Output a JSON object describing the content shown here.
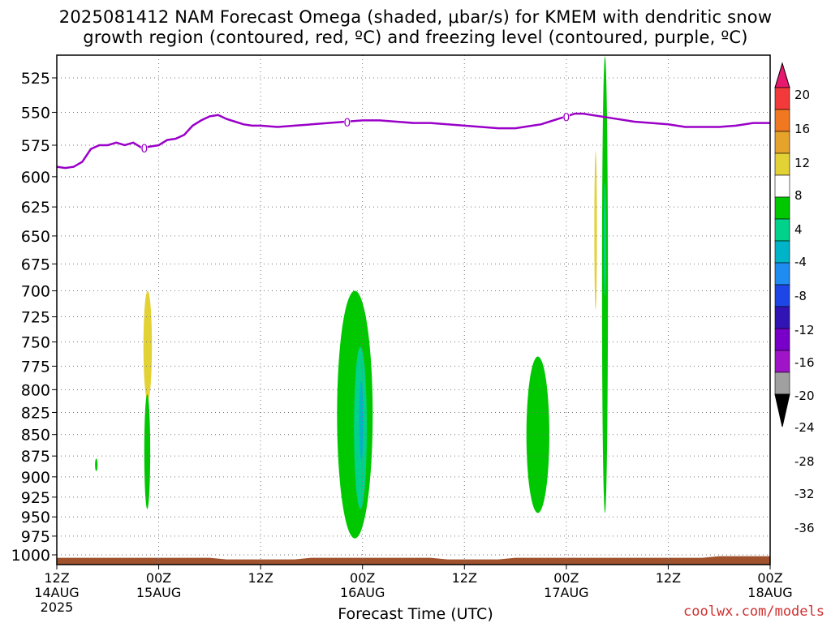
{
  "title_line1": "2025081412 NAM Forecast Omega (shaded, μbar/s) for KMEM with dendritic snow",
  "title_line2": "growth region (contoured, red, ºC) and freezing level (contoured, purple, ºC)",
  "credit": "coolwx.com/models",
  "chart_data": {
    "type": "time-height contour",
    "title": "2025081412 NAM Forecast Omega (shaded, μbar/s) for KMEM with dendritic snow growth region (contoured, red, ºC) and freezing level (contoured, purple, ºC)",
    "xlabel": "Forecast Time (UTC)",
    "ylabel": "",
    "x_ticks": [
      {
        "hour": 0,
        "l1": "12Z",
        "l2": "14AUG",
        "l3": "2025"
      },
      {
        "hour": 12,
        "l1": "00Z",
        "l2": "15AUG",
        "l3": ""
      },
      {
        "hour": 24,
        "l1": "12Z",
        "l2": "",
        "l3": ""
      },
      {
        "hour": 36,
        "l1": "00Z",
        "l2": "16AUG",
        "l3": ""
      },
      {
        "hour": 48,
        "l1": "12Z",
        "l2": "",
        "l3": ""
      },
      {
        "hour": 60,
        "l1": "00Z",
        "l2": "17AUG",
        "l3": ""
      },
      {
        "hour": 72,
        "l1": "12Z",
        "l2": "",
        "l3": ""
      },
      {
        "hour": 84,
        "l1": "00Z",
        "l2": "18AUG",
        "l3": ""
      }
    ],
    "y_ticks": [
      525,
      550,
      575,
      600,
      625,
      650,
      675,
      700,
      725,
      750,
      775,
      800,
      825,
      850,
      875,
      900,
      925,
      950,
      975,
      1000
    ],
    "ylim_hpa": [
      510,
      1010
    ],
    "xlim_hours": [
      0,
      84
    ],
    "y_scale": "log-pressure",
    "grid": true,
    "colorbar": {
      "labels": [
        "20",
        "16",
        "12",
        "8",
        "4",
        "-4",
        "-8",
        "-12",
        "-16",
        "-20",
        "-24",
        "-28",
        "-32",
        "-36"
      ],
      "colors": [
        "#e8186e",
        "#f23a3a",
        "#f07820",
        "#e6a32c",
        "#e2d236",
        "#ffffff",
        "#00c800",
        "#00d28c",
        "#00b4c8",
        "#1e8cf0",
        "#1e46e6",
        "#3214b4",
        "#7800c8",
        "#a014c8",
        "#a0a0a0",
        "#000000"
      ]
    },
    "freezing_level": {
      "label": "0",
      "color": "#9a00c8",
      "hours": [
        0,
        1,
        2,
        3,
        4,
        5,
        6,
        7,
        8,
        9,
        10,
        11,
        12,
        13,
        14,
        15,
        16,
        17,
        18,
        19,
        20,
        21,
        22,
        23,
        24,
        26,
        28,
        30,
        32,
        34,
        36,
        38,
        40,
        42,
        44,
        46,
        48,
        50,
        52,
        54,
        56,
        57,
        58,
        59,
        60,
        61,
        62,
        63,
        64,
        66,
        68,
        70,
        72,
        74,
        76,
        78,
        80,
        82,
        84
      ],
      "hpa": [
        592,
        593,
        592,
        588,
        578,
        575,
        575,
        573,
        575,
        573,
        577,
        576,
        575,
        571,
        570,
        567,
        560,
        556,
        553,
        552,
        555,
        557,
        559,
        560,
        560,
        561,
        560,
        559,
        558,
        557,
        556,
        556,
        557,
        558,
        558,
        559,
        560,
        561,
        562,
        562,
        560,
        559,
        557,
        555,
        553,
        551,
        551,
        552,
        553,
        555,
        557,
        558,
        559,
        561,
        561,
        561,
        560,
        558,
        558
      ]
    },
    "omega_regions": [
      {
        "value_range": "4 to 8",
        "color": "#e2d236",
        "hours": [
          10.2,
          11.2
        ],
        "hpa": [
          700,
          812
        ]
      },
      {
        "value_range": "4 to 8",
        "color": "#e2d236",
        "hours": [
          63.3,
          63.6
        ],
        "hpa": [
          580,
          718
        ]
      },
      {
        "value_range": "-4 to -8",
        "color": "#00c800",
        "hours": [
          4.5,
          4.8
        ],
        "hpa": [
          878,
          893
        ]
      },
      {
        "value_range": "-4 to -8",
        "color": "#00c800",
        "hours": [
          10.3,
          11.0
        ],
        "hpa": [
          805,
          940
        ]
      },
      {
        "value_range": "-4 to -8",
        "color": "#00c800",
        "hours": [
          33.0,
          37.2
        ],
        "hpa": [
          700,
          978
        ]
      },
      {
        "value_range": "-8 to -12",
        "color": "#00d28c",
        "hours": [
          35.0,
          36.5
        ],
        "hpa": [
          755,
          940
        ]
      },
      {
        "value_range": "-12 to -16",
        "color": "#00b4c8",
        "hours": [
          35.6,
          36.1
        ],
        "hpa": [
          790,
          880
        ]
      },
      {
        "value_range": "-4 to -8",
        "color": "#00c800",
        "hours": [
          55.3,
          58.0
        ],
        "hpa": [
          765,
          945
        ]
      },
      {
        "value_range": "-4 to -8",
        "color": "#00c800",
        "hours": [
          64.2,
          64.9
        ],
        "hpa": [
          510,
          945
        ]
      },
      {
        "value_range": "-8 to -12",
        "color": "#00d28c",
        "hours": [
          64.4,
          64.7
        ],
        "hpa": [
          605,
          705
        ]
      }
    ],
    "terrain": {
      "color": "#a0522d",
      "surface_hpa_approx": 1004
    }
  }
}
